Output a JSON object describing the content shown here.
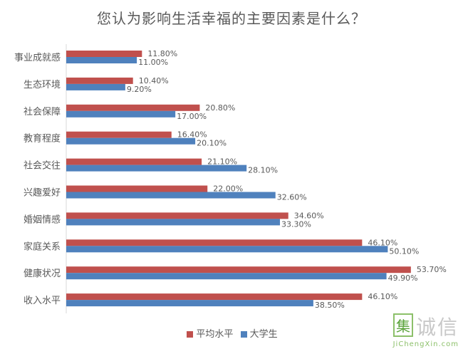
{
  "chart_data": {
    "type": "bar",
    "orientation": "horizontal",
    "title": "您认为影响生活幸福的主要因素是什么？",
    "categories": [
      "事业成就感",
      "生态环境",
      "社会保障",
      "教育程度",
      "社会交往",
      "兴趣爱好",
      "婚姻情感",
      "家庭关系",
      "健康状况",
      "收入水平"
    ],
    "series": [
      {
        "name": "平均水平",
        "color": "#c0504d",
        "values": [
          11.8,
          10.4,
          20.8,
          16.4,
          21.1,
          22.0,
          34.6,
          46.1,
          53.7,
          46.1
        ],
        "labels": [
          "11.80%",
          "10.40%",
          "20.80%",
          "16.40%",
          "21.10%",
          "22.00%",
          "34.60%",
          "46.10%",
          "53.70%",
          "46.10%"
        ]
      },
      {
        "name": "大学生",
        "color": "#4f81bd",
        "values": [
          11.0,
          9.2,
          17.0,
          20.1,
          28.1,
          32.6,
          33.3,
          50.1,
          49.9,
          38.5
        ],
        "labels": [
          "11.00%",
          "9.20%",
          "17.00%",
          "20.10%",
          "28.10%",
          "32.60%",
          "33.30%",
          "50.10%",
          "49.90%",
          "38.50%"
        ]
      }
    ],
    "xlim": [
      0,
      60
    ],
    "grid": false,
    "legend_position": "bottom"
  },
  "watermark": {
    "char": "集",
    "text": "诚信",
    "site": "JiChengXin.com"
  }
}
